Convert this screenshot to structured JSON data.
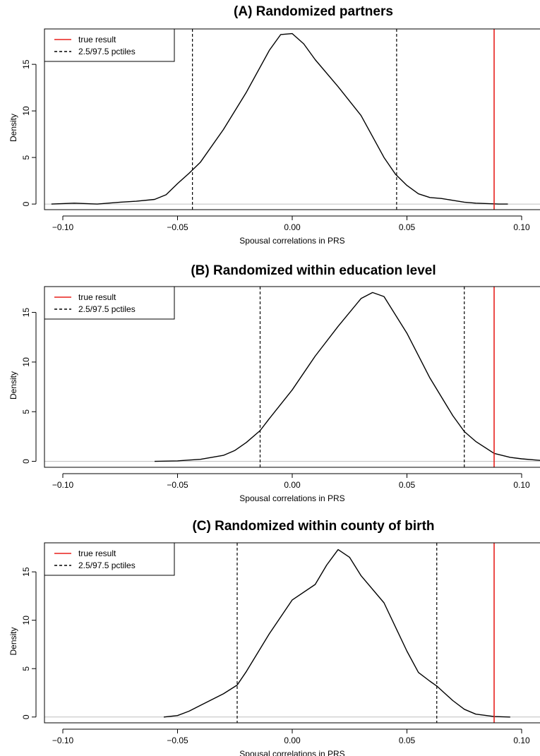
{
  "chart_data": [
    {
      "type": "line",
      "title": "(A) Randomized partners",
      "xlabel": "Spousal correlations in PRS",
      "ylabel": "Density",
      "xlim": [
        -0.108,
        0.108
      ],
      "ylim": [
        -0.6,
        18.8
      ],
      "x_ticks": [
        -0.1,
        -0.05,
        0.0,
        0.05,
        0.1
      ],
      "x_tick_labels": [
        "−0.10",
        "−0.05",
        "0.00",
        "0.05",
        "0.10"
      ],
      "y_ticks": [
        0,
        5,
        10,
        15
      ],
      "y_tick_labels": [
        "0",
        "5",
        "10",
        "15"
      ],
      "grid": false,
      "legend_position": "top-left",
      "legend": [
        {
          "label": "true result",
          "style": "solid",
          "color": "#e8201c"
        },
        {
          "label": "2.5/97.5 pctiles",
          "style": "dashed",
          "color": "#000000"
        }
      ],
      "true_result": 0.088,
      "percentiles": [
        -0.0435,
        0.0455
      ],
      "series": [
        {
          "x": [
            -0.105,
            -0.095,
            -0.085,
            -0.075,
            -0.068,
            -0.06,
            -0.055,
            -0.05,
            -0.045,
            -0.04,
            -0.03,
            -0.02,
            -0.01,
            -0.005,
            0.0,
            0.005,
            0.01,
            0.02,
            0.03,
            0.04,
            0.045,
            0.05,
            0.055,
            0.06,
            0.065,
            0.07,
            0.075,
            0.08,
            0.085,
            0.09,
            0.094
          ],
          "y": [
            0.0,
            0.1,
            0.0,
            0.2,
            0.3,
            0.5,
            1.0,
            2.2,
            3.3,
            4.5,
            8.0,
            12.0,
            16.5,
            18.2,
            18.3,
            17.2,
            15.5,
            12.6,
            9.5,
            5.0,
            3.2,
            2.0,
            1.1,
            0.7,
            0.6,
            0.4,
            0.2,
            0.1,
            0.05,
            0.0,
            0.0
          ]
        }
      ]
    },
    {
      "type": "line",
      "title": "(B) Randomized within education level",
      "xlabel": "Spousal correlations in PRS",
      "ylabel": "Density",
      "xlim": [
        -0.108,
        0.108
      ],
      "ylim": [
        -0.6,
        17.6
      ],
      "x_ticks": [
        -0.1,
        -0.05,
        0.0,
        0.05,
        0.1
      ],
      "x_tick_labels": [
        "−0.10",
        "−0.05",
        "0.00",
        "0.05",
        "0.10"
      ],
      "y_ticks": [
        0,
        5,
        10,
        15
      ],
      "y_tick_labels": [
        "0",
        "5",
        "10",
        "15"
      ],
      "grid": false,
      "legend_position": "top-left",
      "legend": [
        {
          "label": "true result",
          "style": "solid",
          "color": "#e8201c"
        },
        {
          "label": "2.5/97.5 pctiles",
          "style": "dashed",
          "color": "#000000"
        }
      ],
      "true_result": 0.088,
      "percentiles": [
        -0.014,
        0.075
      ],
      "series": [
        {
          "x": [
            -0.06,
            -0.05,
            -0.04,
            -0.03,
            -0.025,
            -0.02,
            -0.014,
            -0.01,
            0.0,
            0.01,
            0.02,
            0.03,
            0.035,
            0.04,
            0.05,
            0.06,
            0.07,
            0.075,
            0.08,
            0.088,
            0.095,
            0.1,
            0.108
          ],
          "y": [
            0.0,
            0.05,
            0.2,
            0.6,
            1.1,
            1.9,
            3.1,
            4.3,
            7.2,
            10.6,
            13.6,
            16.4,
            17.0,
            16.6,
            12.9,
            8.4,
            4.6,
            3.0,
            2.0,
            0.8,
            0.4,
            0.25,
            0.1
          ]
        }
      ]
    },
    {
      "type": "line",
      "title": "(C) Randomized within county of birth",
      "xlabel": "Spousal correlations in PRS",
      "ylabel": "Density",
      "xlim": [
        -0.108,
        0.108
      ],
      "ylim": [
        -0.6,
        18.0
      ],
      "x_ticks": [
        -0.1,
        -0.05,
        0.0,
        0.05,
        0.1
      ],
      "x_tick_labels": [
        "−0.10",
        "−0.05",
        "0.00",
        "0.05",
        "0.10"
      ],
      "y_ticks": [
        0,
        5,
        10,
        15
      ],
      "y_tick_labels": [
        "0",
        "5",
        "10",
        "15"
      ],
      "grid": false,
      "legend_position": "top-left",
      "legend": [
        {
          "label": "true result",
          "style": "solid",
          "color": "#e8201c"
        },
        {
          "label": "2.5/97.5 pctiles",
          "style": "dashed",
          "color": "#000000"
        }
      ],
      "true_result": 0.088,
      "percentiles": [
        -0.024,
        0.063
      ],
      "series": [
        {
          "x": [
            -0.056,
            -0.05,
            -0.045,
            -0.04,
            -0.03,
            -0.024,
            -0.02,
            -0.01,
            0.0,
            0.01,
            0.015,
            0.02,
            0.025,
            0.03,
            0.04,
            0.05,
            0.055,
            0.06,
            0.063,
            0.07,
            0.075,
            0.08,
            0.088,
            0.095
          ],
          "y": [
            0.0,
            0.15,
            0.6,
            1.2,
            2.4,
            3.3,
            4.7,
            8.6,
            12.1,
            13.7,
            15.7,
            17.3,
            16.5,
            14.6,
            11.8,
            6.8,
            4.6,
            3.7,
            3.2,
            1.7,
            0.8,
            0.3,
            0.05,
            0.0
          ]
        }
      ]
    }
  ]
}
